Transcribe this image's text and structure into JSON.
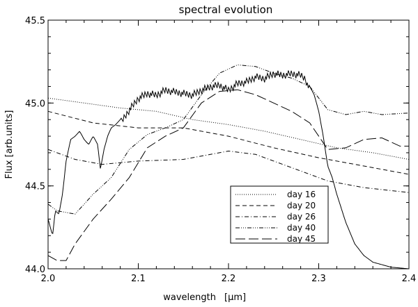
{
  "chart_data": {
    "type": "line",
    "title": "spectral evolution",
    "xlabel": "wavelength",
    "xlabel_unit": "[μm]",
    "ylabel": "Flux [arb.units]",
    "xlim": [
      2.0,
      2.4
    ],
    "ylim": [
      44.0,
      45.5
    ],
    "x_ticks": [
      "2.0",
      "2.1",
      "2.2",
      "2.3",
      "2.4"
    ],
    "y_ticks": [
      "44.0",
      "44.5",
      "45.0",
      "45.5"
    ],
    "legend_position": "lower-right",
    "series": [
      {
        "name": "day 16",
        "dash": "1,2",
        "x": [
          2.0,
          2.04,
          2.08,
          2.12,
          2.16,
          2.2,
          2.24,
          2.28,
          2.32,
          2.36,
          2.4
        ],
        "y": [
          45.03,
          45.0,
          44.97,
          44.95,
          44.9,
          44.87,
          44.83,
          44.78,
          44.73,
          44.7,
          44.66
        ]
      },
      {
        "name": "day 20",
        "dash": "6,4",
        "x": [
          2.0,
          2.05,
          2.1,
          2.15,
          2.2,
          2.25,
          2.3,
          2.35,
          2.4
        ],
        "y": [
          44.95,
          44.88,
          44.85,
          44.85,
          44.8,
          44.73,
          44.67,
          44.62,
          44.57
        ]
      },
      {
        "name": "day 26",
        "dash": "6,3,1,3",
        "x": [
          2.0,
          2.03,
          2.06,
          2.1,
          2.15,
          2.2,
          2.23,
          2.27,
          2.31,
          2.35,
          2.4
        ],
        "y": [
          44.72,
          44.66,
          44.63,
          44.65,
          44.66,
          44.71,
          44.69,
          44.61,
          44.53,
          44.49,
          44.46
        ]
      },
      {
        "name": "day 40",
        "dash": "6,2,1,2,1,2,1,2",
        "x": [
          2.0,
          2.01,
          2.03,
          2.05,
          2.07,
          2.09,
          2.11,
          2.13,
          2.15,
          2.17,
          2.19,
          2.21,
          2.23,
          2.25,
          2.27,
          2.29,
          2.31,
          2.33,
          2.35,
          2.37,
          2.4
        ],
        "y": [
          44.39,
          44.35,
          44.33,
          44.45,
          44.55,
          44.72,
          44.81,
          44.85,
          44.9,
          45.05,
          45.18,
          45.23,
          45.22,
          45.18,
          45.15,
          45.1,
          44.96,
          44.93,
          44.95,
          44.93,
          44.94
        ]
      },
      {
        "name": "day 45",
        "dash": "14,5",
        "x": [
          2.0,
          2.01,
          2.02,
          2.03,
          2.05,
          2.07,
          2.09,
          2.11,
          2.13,
          2.15,
          2.17,
          2.19,
          2.21,
          2.23,
          2.25,
          2.27,
          2.29,
          2.31,
          2.33,
          2.35,
          2.37,
          2.39,
          2.4
        ],
        "y": [
          44.08,
          44.05,
          44.05,
          44.15,
          44.3,
          44.42,
          44.55,
          44.73,
          44.8,
          44.85,
          45.0,
          45.07,
          45.08,
          45.05,
          45.0,
          44.95,
          44.88,
          44.72,
          44.73,
          44.78,
          44.79,
          44.74,
          44.74
        ]
      }
    ],
    "spectrum": {
      "name": "solid spectrum (unlabeled)",
      "x": [
        2.0,
        2.005,
        2.008,
        2.012,
        2.016,
        2.02,
        2.025,
        2.03,
        2.035,
        2.04,
        2.045,
        2.05,
        2.055,
        2.058,
        2.062,
        2.066,
        2.07,
        2.075,
        2.08,
        2.09,
        2.1,
        2.11,
        2.12,
        2.13,
        2.14,
        2.15,
        2.16,
        2.17,
        2.18,
        2.19,
        2.2,
        2.21,
        2.22,
        2.23,
        2.24,
        2.25,
        2.26,
        2.27,
        2.28,
        2.285,
        2.29,
        2.295,
        2.3,
        2.305,
        2.31,
        2.315,
        2.32,
        2.33,
        2.34,
        2.35,
        2.36,
        2.38,
        2.4
      ],
      "y": [
        44.3,
        44.2,
        44.35,
        44.33,
        44.45,
        44.65,
        44.78,
        44.8,
        44.83,
        44.78,
        44.75,
        44.8,
        44.75,
        44.6,
        44.72,
        44.8,
        44.85,
        44.87,
        44.9,
        44.98,
        45.05,
        45.08,
        45.07,
        45.1,
        45.09,
        45.08,
        45.07,
        45.1,
        45.12,
        45.13,
        45.1,
        45.14,
        45.15,
        45.18,
        45.17,
        45.2,
        45.19,
        45.2,
        45.19,
        45.17,
        45.1,
        45.05,
        44.95,
        44.8,
        44.62,
        44.55,
        44.45,
        44.28,
        44.15,
        44.08,
        44.04,
        44.01,
        44.0
      ]
    }
  }
}
